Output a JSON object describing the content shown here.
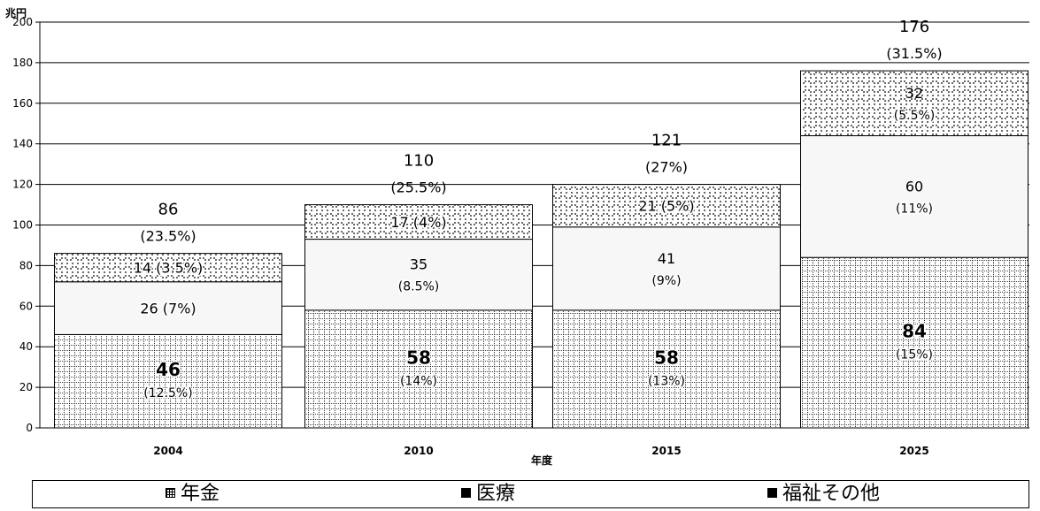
{
  "chart_data": {
    "type": "bar",
    "stacked": true,
    "unit_label": "兆円",
    "xlabel": "年度",
    "ylabel": "",
    "ylim": [
      0,
      200
    ],
    "y_ticks": [
      0,
      20,
      40,
      60,
      80,
      100,
      120,
      140,
      160,
      180,
      200
    ],
    "grid": true,
    "categories": [
      "2004",
      "2010",
      "2015",
      "2025"
    ],
    "series": [
      {
        "name": "年金",
        "values": [
          46,
          58,
          58,
          84
        ],
        "value_labels": [
          "46",
          "58",
          "58",
          "84"
        ],
        "pct_labels": [
          "(12.5%)",
          "(14%)",
          "(13%)",
          "(15%)"
        ]
      },
      {
        "name": "医療",
        "values": [
          26,
          35,
          41,
          60
        ],
        "value_labels": [
          "26 (7%)",
          "35",
          "41",
          "60"
        ],
        "pct_labels": [
          "",
          "(8.5%)",
          "(9%)",
          "(11%)"
        ]
      },
      {
        "name": "福祉その他",
        "values": [
          14,
          17,
          21,
          32
        ],
        "value_labels": [
          "14 (3.5%)",
          "17 (4%)",
          "21 (5%)",
          "32"
        ],
        "pct_labels": [
          "",
          "",
          "",
          "(5.5%)"
        ]
      }
    ],
    "totals": [
      86,
      110,
      121,
      176
    ],
    "total_pct": [
      "(23.5%)",
      "(25.5%)",
      "(27%)",
      "(31.5%)"
    ],
    "legend_position": "bottom",
    "colors": {
      "pattern_fg": "#000000",
      "segment_bg": "#ffffff",
      "medical_bg": "#f7f7f7"
    }
  },
  "legend": {
    "pension": "年金",
    "medical": "医療",
    "welfare": "福祉その他"
  }
}
